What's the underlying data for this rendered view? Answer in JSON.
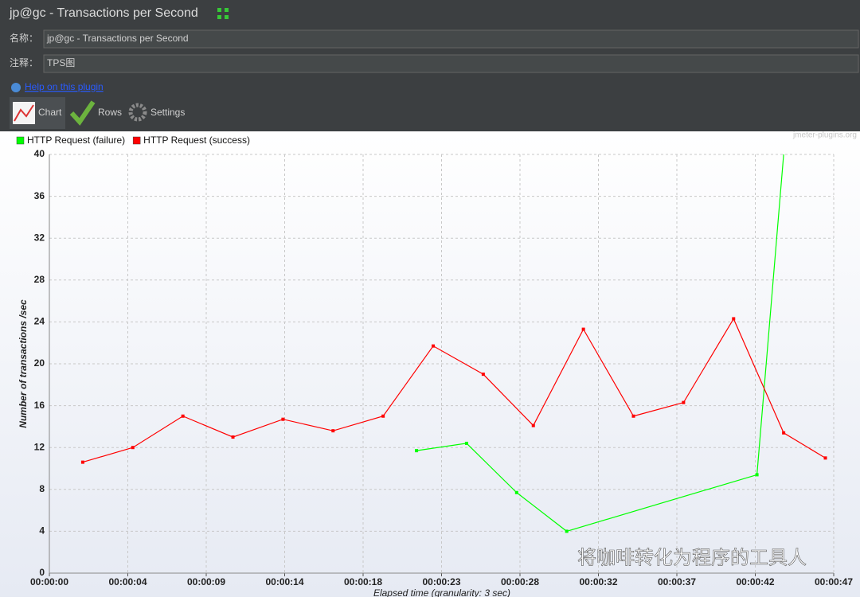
{
  "window": {
    "title": "jp@gc - Transactions per Second",
    "name_label": "名称：",
    "name_value": "jp@gc - Transactions per Second",
    "comment_label": "注释：",
    "comment_value": "TPS图",
    "help_link": "Help on this plugin",
    "tabs": [
      "Chart",
      "Rows",
      "Settings"
    ],
    "watermark": "jmeter-plugins.org",
    "overlay_text": "将咖啡转化为程序的工具人"
  },
  "chart_data": {
    "type": "line",
    "ylabel": "Number of transactions /sec",
    "xlabel": "Elapsed time (granularity: 3 sec)",
    "xlim": [
      0,
      47
    ],
    "ylim": [
      0,
      40
    ],
    "xticks": [
      {
        "value": 0,
        "label": "00:00:00"
      },
      {
        "value": 4.7,
        "label": "00:00:04"
      },
      {
        "value": 9.4,
        "label": "00:00:09"
      },
      {
        "value": 14.1,
        "label": "00:00:14"
      },
      {
        "value": 18.8,
        "label": "00:00:18"
      },
      {
        "value": 23.5,
        "label": "00:00:23"
      },
      {
        "value": 28.2,
        "label": "00:00:28"
      },
      {
        "value": 32.9,
        "label": "00:00:32"
      },
      {
        "value": 37.6,
        "label": "00:00:37"
      },
      {
        "value": 42.3,
        "label": "00:00:42"
      },
      {
        "value": 47,
        "label": "00:00:47"
      }
    ],
    "yticks": [
      0,
      4,
      8,
      12,
      16,
      20,
      24,
      28,
      32,
      36,
      40
    ],
    "grid": true,
    "series": [
      {
        "name": "HTTP Request (failure)",
        "color": "#00ff00",
        "x": [
          22,
          25,
          28,
          31,
          42.4,
          44
        ],
        "values": [
          11.7,
          12.4,
          7.7,
          4.0,
          9.4,
          40
        ]
      },
      {
        "name": "HTTP Request (success)",
        "color": "#ff0000",
        "x": [
          2,
          5,
          8,
          11,
          14,
          17,
          20,
          23,
          26,
          29,
          32,
          35,
          38,
          41,
          44,
          46.5
        ],
        "values": [
          10.6,
          12.0,
          15.0,
          13.0,
          14.7,
          13.6,
          15.0,
          21.7,
          19.0,
          14.1,
          23.3,
          15.0,
          16.3,
          24.3,
          13.4,
          11.0
        ]
      }
    ]
  }
}
